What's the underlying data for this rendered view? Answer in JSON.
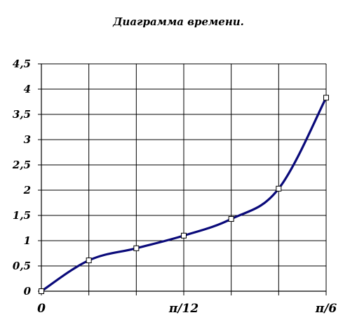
{
  "chart_data": {
    "type": "line",
    "title": "Диаграмма времени.",
    "xlabel": "",
    "ylabel": "",
    "x_count": 7,
    "x_tick_labels": [
      "0",
      "",
      "",
      "π/12",
      "",
      "",
      "π/6"
    ],
    "y_tick_labels": [
      "0",
      "0,5",
      "1",
      "1,5",
      "2",
      "2,5",
      "3",
      "3,5",
      "4",
      "4,5"
    ],
    "ylim": [
      0,
      4.5
    ],
    "grid": true,
    "legend": "none",
    "series": [
      {
        "values": [
          0,
          0.61,
          0.85,
          1.1,
          1.43,
          2.03,
          3.83
        ],
        "color": "#0a0a7a"
      }
    ]
  }
}
